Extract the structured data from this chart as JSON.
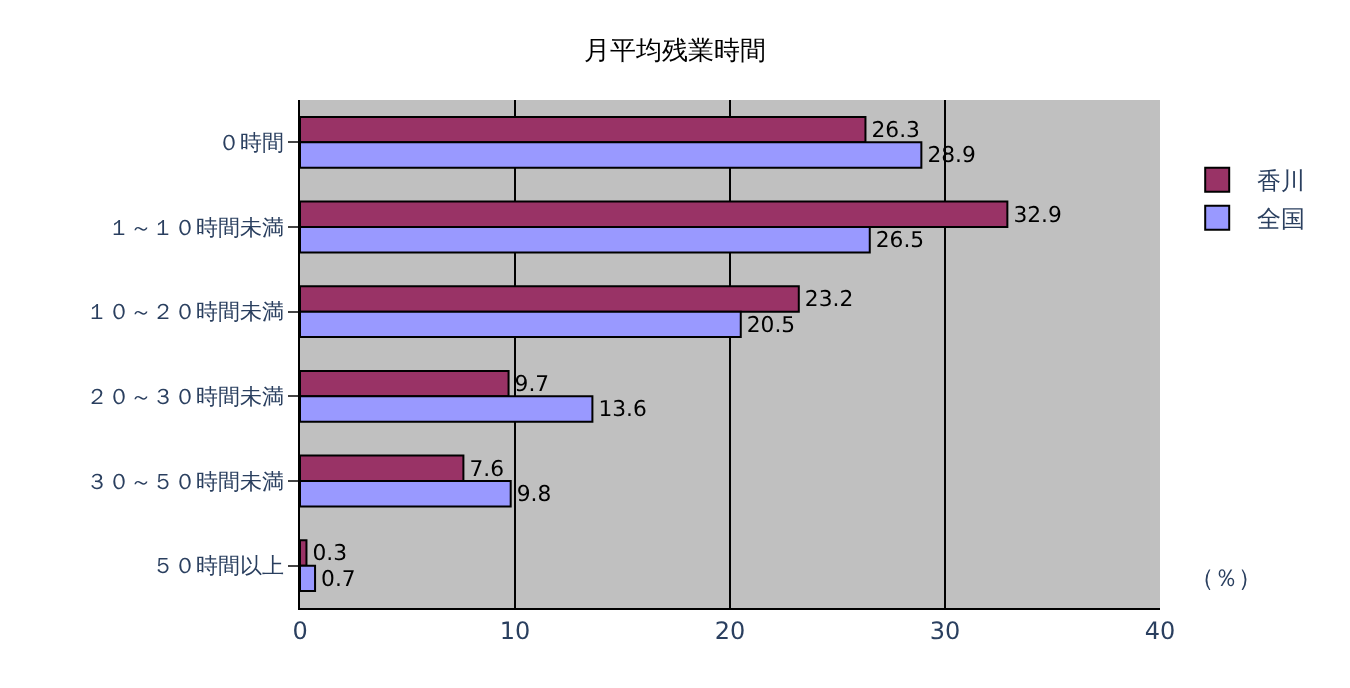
{
  "chart_data": {
    "type": "bar",
    "orientation": "horizontal",
    "title": "月平均残業時間",
    "categories": [
      "０時間",
      "１～１０時間未満",
      "１０～２０時間未満",
      "２０～３０時間未満",
      "３０～５０時間未満",
      "５０時間以上"
    ],
    "series": [
      {
        "name": "香川",
        "color": "#993366",
        "values": [
          26.3,
          32.9,
          23.2,
          9.7,
          7.6,
          0.3
        ]
      },
      {
        "name": "全国",
        "color": "#9999ff",
        "values": [
          28.9,
          26.5,
          20.5,
          13.6,
          9.8,
          0.7
        ]
      }
    ],
    "xlim": [
      0,
      40
    ],
    "xticks": [
      0,
      10,
      20,
      30,
      40
    ],
    "grid": "x",
    "legend": "right",
    "data_labels": true,
    "annotations": [
      "（％）"
    ]
  }
}
